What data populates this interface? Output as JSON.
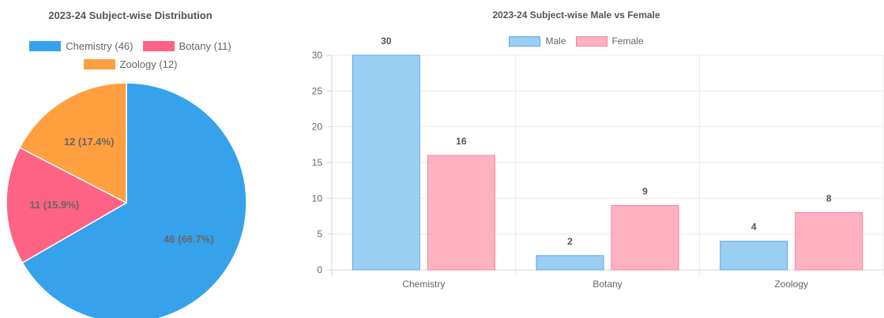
{
  "chart_data": [
    {
      "type": "pie",
      "title": "2023-24 Subject-wise Distribution",
      "categories": [
        "Chemistry",
        "Botany",
        "Zoology"
      ],
      "values": [
        46,
        11,
        12
      ],
      "legend_labels": [
        "Chemistry (46)",
        "Botany (11)",
        "Zoology (12)"
      ],
      "slice_labels": [
        "46 (66.7%)",
        "11 (15.9%)",
        "12 (17.4%)"
      ],
      "colors": [
        "#36A2EB",
        "#FF6384",
        "#FF9F40"
      ],
      "legend_position": "top"
    },
    {
      "type": "bar",
      "title": "2023-24 Subject-wise Male vs Female",
      "categories": [
        "Chemistry",
        "Botany",
        "Zoology"
      ],
      "series": [
        {
          "name": "Male",
          "values": [
            30,
            2,
            4
          ],
          "fill": "#9BCEF3",
          "border": "#5AA8E6"
        },
        {
          "name": "Female",
          "values": [
            16,
            9,
            8
          ],
          "fill": "#FFB1C1",
          "border": "#F7819A"
        }
      ],
      "ylim": [
        0,
        30
      ],
      "yticks": [
        0,
        5,
        10,
        15,
        20,
        25,
        30
      ],
      "grid": true,
      "legend_position": "top"
    }
  ]
}
